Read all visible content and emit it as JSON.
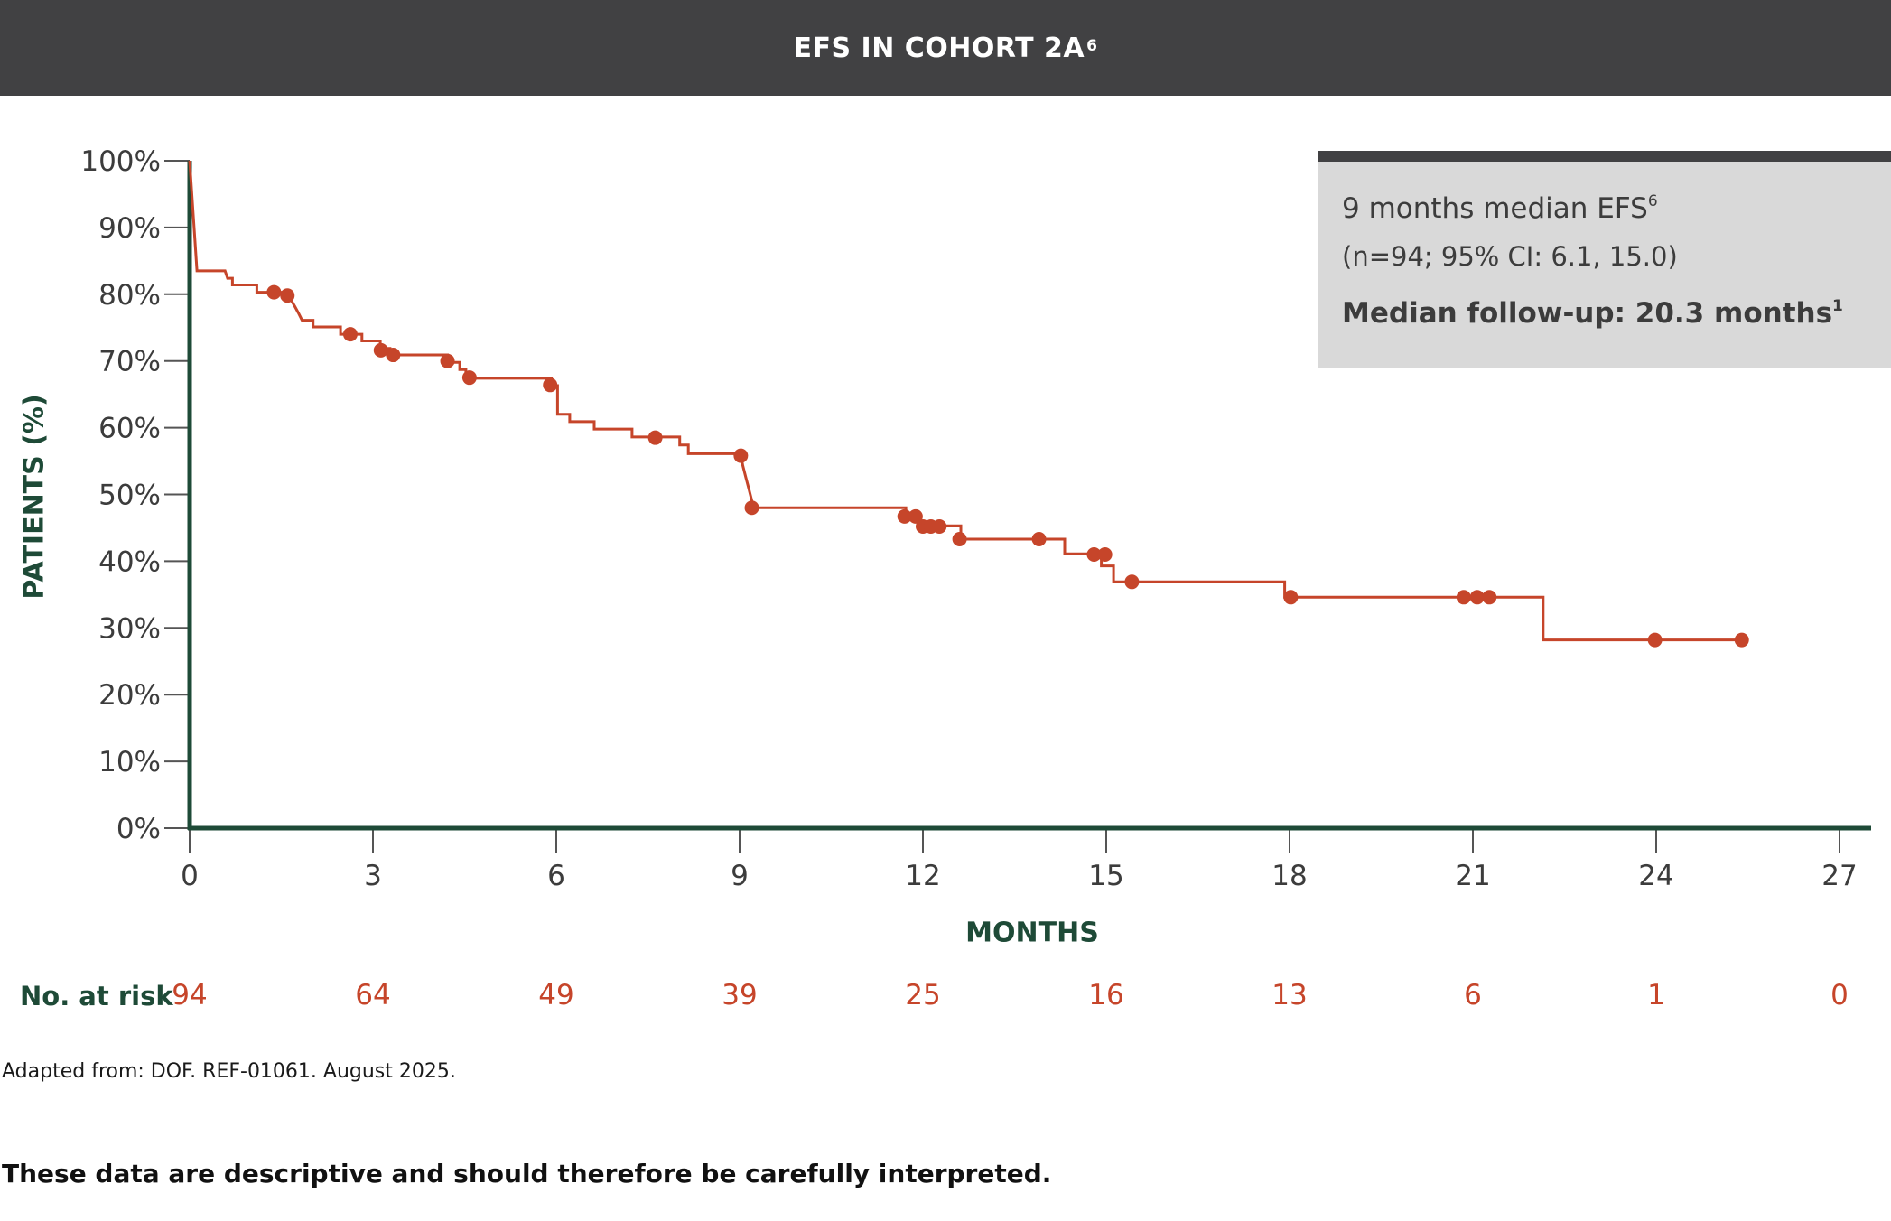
{
  "header": {
    "title": "EFS IN COHORT 2A",
    "title_sup": "6"
  },
  "info_box": {
    "line1": "9 months median EFS",
    "line1_sup": "6",
    "line2": "(n=94; 95% CI: 6.1, 15.0)",
    "line3": "Median follow-up: 20.3 months",
    "line3_sup": "1"
  },
  "chart_data": {
    "type": "line",
    "step": true,
    "ylabel": "PATIENTS (%)",
    "xlabel": "MONTHS",
    "xlim": [
      0,
      27
    ],
    "ylim": [
      0,
      100
    ],
    "x_ticks": [
      "0",
      "3",
      "6",
      "9",
      "12",
      "15",
      "18",
      "21",
      "24",
      "27"
    ],
    "y_ticks": [
      "0%",
      "10%",
      "20%",
      "30%",
      "40%",
      "50%",
      "60%",
      "70%",
      "80%",
      "90%",
      "100%"
    ],
    "line_color": "#c6452a",
    "axis_color": "#1e4a37",
    "series": [
      {
        "steps": [
          [
            0,
            100
          ],
          [
            0.12,
            83.5
          ],
          [
            0.58,
            83.5
          ],
          [
            0.62,
            82.4
          ],
          [
            0.7,
            82.4
          ],
          [
            0.7,
            81.4
          ],
          [
            1.1,
            81.4
          ],
          [
            1.1,
            80.3
          ],
          [
            1.6,
            80.3
          ],
          [
            1.65,
            79.3
          ],
          [
            1.72,
            78.2
          ],
          [
            1.78,
            77.2
          ],
          [
            1.84,
            76.1
          ],
          [
            2.02,
            76.1
          ],
          [
            2.02,
            75.1
          ],
          [
            2.47,
            75.1
          ],
          [
            2.47,
            74.0
          ],
          [
            2.82,
            74.0
          ],
          [
            2.82,
            73.0
          ],
          [
            3.12,
            73.0
          ],
          [
            3.12,
            71.9
          ],
          [
            3.28,
            71.9
          ],
          [
            3.28,
            70.9
          ],
          [
            4.22,
            70.9
          ],
          [
            4.22,
            69.8
          ],
          [
            4.42,
            69.8
          ],
          [
            4.42,
            68.7
          ],
          [
            4.52,
            68.7
          ],
          [
            4.52,
            67.4
          ],
          [
            5.92,
            67.4
          ],
          [
            5.92,
            66.3
          ],
          [
            6.02,
            66.3
          ],
          [
            6.02,
            62.0
          ],
          [
            6.22,
            62.0
          ],
          [
            6.22,
            60.9
          ],
          [
            6.62,
            60.9
          ],
          [
            6.62,
            59.8
          ],
          [
            7.24,
            59.8
          ],
          [
            7.24,
            58.6
          ],
          [
            8.02,
            58.6
          ],
          [
            8.02,
            57.4
          ],
          [
            8.16,
            57.4
          ],
          [
            8.16,
            56.1
          ],
          [
            9.02,
            56.1
          ],
          [
            9.05,
            54.4
          ],
          [
            9.1,
            52.6
          ],
          [
            9.15,
            50.9
          ],
          [
            9.2,
            49.1
          ],
          [
            9.22,
            48.0
          ],
          [
            11.72,
            48.0
          ],
          [
            11.72,
            46.8
          ],
          [
            11.92,
            46.8
          ],
          [
            11.92,
            45.3
          ],
          [
            12.62,
            45.3
          ],
          [
            12.62,
            43.3
          ],
          [
            14.32,
            43.3
          ],
          [
            14.32,
            41.1
          ],
          [
            14.92,
            41.1
          ],
          [
            14.92,
            39.3
          ],
          [
            15.12,
            39.3
          ],
          [
            15.12,
            36.9
          ],
          [
            17.92,
            36.9
          ],
          [
            17.92,
            34.6
          ],
          [
            22.15,
            34.6
          ],
          [
            22.15,
            28.2
          ],
          [
            25.4,
            28.2
          ]
        ]
      }
    ],
    "censored": [
      [
        1.38,
        80.3
      ],
      [
        1.6,
        79.8
      ],
      [
        2.63,
        74.0
      ],
      [
        3.13,
        71.6
      ],
      [
        3.33,
        70.9
      ],
      [
        4.22,
        70.0
      ],
      [
        4.58,
        67.5
      ],
      [
        5.9,
        66.4
      ],
      [
        7.62,
        58.5
      ],
      [
        9.02,
        55.8
      ],
      [
        9.2,
        48.0
      ],
      [
        11.7,
        46.7
      ],
      [
        11.88,
        46.7
      ],
      [
        12.0,
        45.2
      ],
      [
        12.13,
        45.2
      ],
      [
        12.27,
        45.2
      ],
      [
        12.6,
        43.3
      ],
      [
        13.9,
        43.3
      ],
      [
        14.8,
        41.0
      ],
      [
        14.98,
        41.0
      ],
      [
        15.42,
        36.9
      ],
      [
        18.02,
        34.6
      ],
      [
        20.85,
        34.6
      ],
      [
        21.07,
        34.6
      ],
      [
        21.27,
        34.6
      ],
      [
        23.98,
        28.2
      ],
      [
        25.4,
        28.2
      ]
    ],
    "at_risk": {
      "label": "No. at risk",
      "x": [
        "0",
        "3",
        "6",
        "9",
        "12",
        "15",
        "18",
        "21",
        "24",
        "27"
      ],
      "values": [
        "94",
        "64",
        "49",
        "39",
        "25",
        "16",
        "13",
        "6",
        "1",
        "0"
      ]
    }
  },
  "footer": {
    "adapted": "Adapted from: DOF. REF-01061. August 2025.",
    "disclaimer": "These data are descriptive and should therefore be carefully interpreted."
  }
}
